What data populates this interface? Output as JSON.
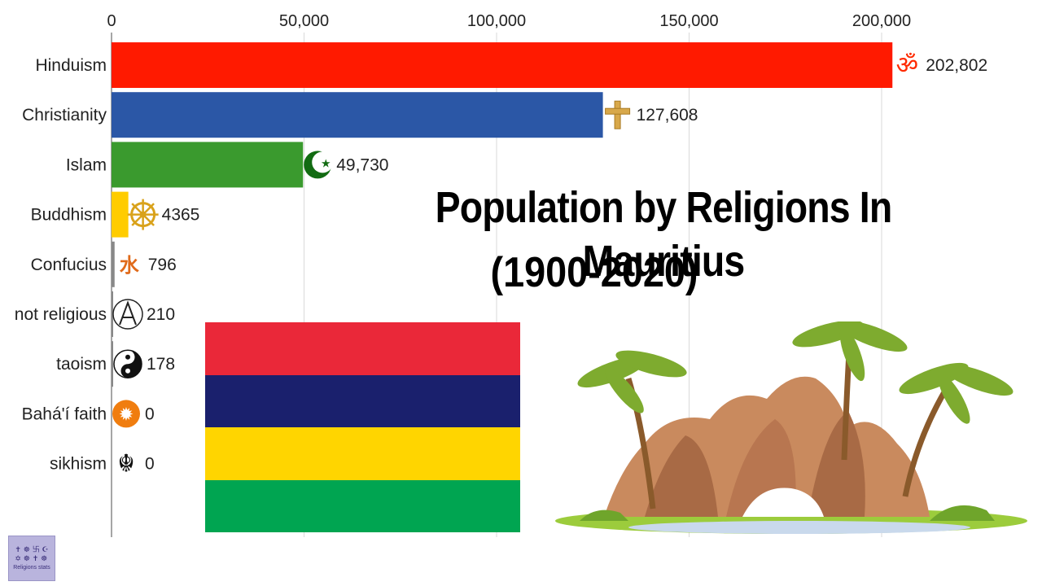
{
  "chart_data": {
    "type": "bar",
    "orientation": "horizontal",
    "title": "Population by Religions In Mauritius",
    "subtitle": "(1900-2020)",
    "xlim": [
      0,
      215000
    ],
    "ticks": [
      0,
      50000,
      100000,
      150000,
      200000
    ],
    "tick_labels": [
      "0",
      "50,000",
      "100,000",
      "150,000",
      "200,000"
    ],
    "grid": true,
    "categories": [
      "Hinduism",
      "Christianity",
      "Islam",
      "Buddhism",
      "Confucius",
      "not religious",
      "taoism",
      "Bahá'í faith",
      "sikhism"
    ],
    "values": [
      202802,
      127608,
      49730,
      4365,
      796,
      210,
      178,
      0,
      0
    ],
    "value_labels": [
      "202,802",
      "127,608",
      "49,730",
      "4365",
      "796",
      "210",
      "178",
      "0",
      "0"
    ],
    "colors": [
      "#ff1a00",
      "#2b57a6",
      "#3a9a2e",
      "#ffcc00",
      "#888888",
      "#888888",
      "#888888",
      "#888888",
      "#888888"
    ],
    "icons": [
      "om-icon",
      "cross-icon",
      "crescent-star-icon",
      "dharma-wheel-icon",
      "confucius-icon",
      "atheism-icon",
      "yin-yang-icon",
      "bahai-star-icon",
      "khanda-icon"
    ]
  },
  "flag": {
    "name": "Mauritius flag",
    "colors": [
      "#ea2839",
      "#1a206d",
      "#ffd500",
      "#00a551"
    ]
  },
  "logo": {
    "text": "Religions stats"
  }
}
